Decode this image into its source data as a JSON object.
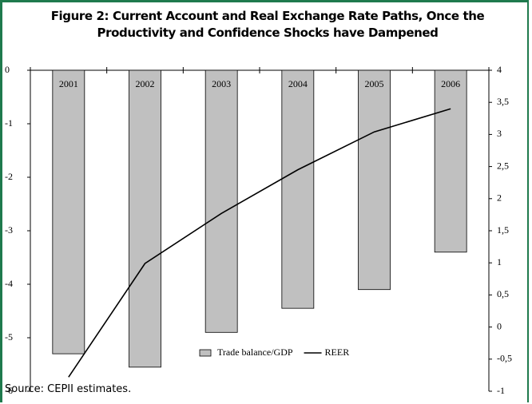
{
  "chart_data": {
    "type": "bar-line",
    "title": "Figure 2: Current Account and Real Exchange Rate Paths, Once the Productivity and Confidence Shocks have Dampened",
    "source": "Source: CEPII estimates.",
    "categories": [
      "2001",
      "2002",
      "2003",
      "2004",
      "2005",
      "2006"
    ],
    "series": [
      {
        "name": "Trade balance/GDP",
        "type": "bar",
        "color": "#c0c0c0",
        "values": [
          -5.3,
          -5.55,
          -4.9,
          -4.45,
          -4.1,
          -3.4
        ]
      },
      {
        "name": "REER",
        "type": "line",
        "axis": "y2",
        "color": "#000000",
        "values": [
          -0.78,
          0.99,
          1.77,
          2.45,
          3.04,
          3.4
        ]
      }
    ],
    "ylim": [
      -6,
      0
    ],
    "yticks": [
      0,
      -1,
      -2,
      -3,
      -4,
      -5,
      -6
    ],
    "y2lim": [
      -1,
      4
    ],
    "y2ticks": [
      4,
      {
        "value": 3.5,
        "label": "3,5"
      },
      3,
      {
        "value": 2.5,
        "label": "2,5"
      },
      2,
      {
        "value": 1.5,
        "label": "1,5"
      },
      1,
      {
        "value": 0.5,
        "label": "0,5"
      },
      0,
      {
        "value": -0.5,
        "label": "-0,5"
      },
      -1
    ],
    "legend": "bottom"
  }
}
